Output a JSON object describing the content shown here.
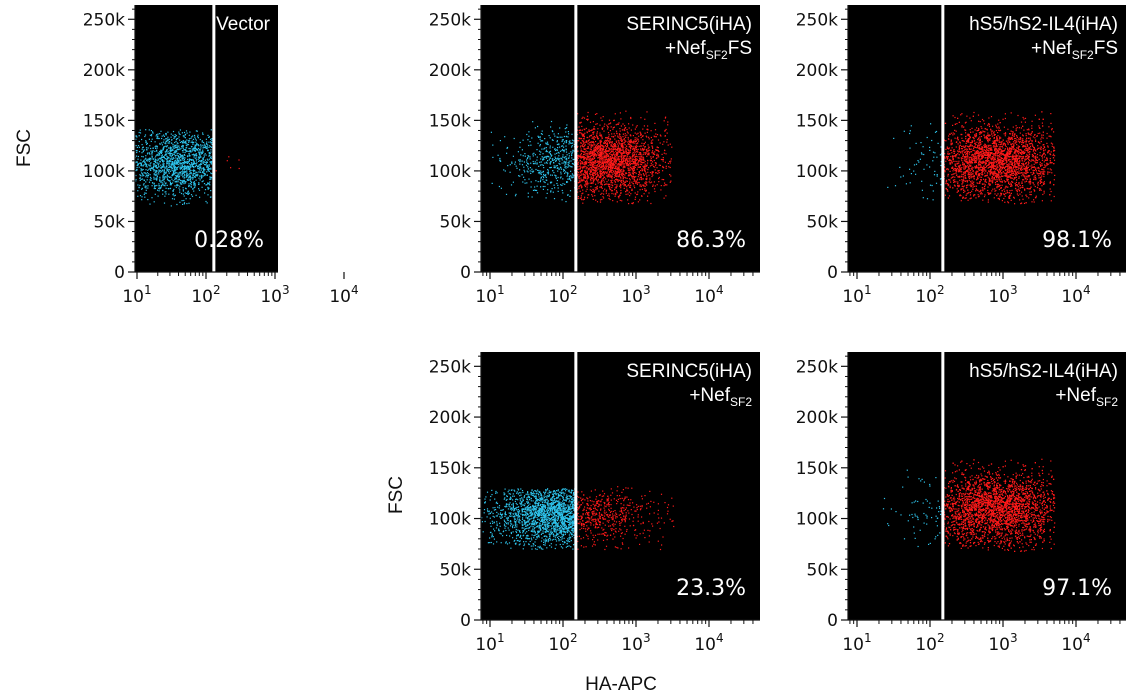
{
  "figure": {
    "y_axis_label": "FSC",
    "x_axis_label": "HA-APC",
    "colors": {
      "background": "#000000",
      "negative": "#2ec4ec",
      "positive": "#ff1a1a",
      "gate": "#ffffff"
    }
  },
  "chart_data": [
    {
      "type": "scatter",
      "panel": "Vector",
      "title_lines": [
        {
          "main": "Vector",
          "sub": "",
          "tail": ""
        }
      ],
      "percent_label": "0.28%",
      "gate_x": 130,
      "xlim": [
        6,
        50000
      ],
      "xscale": "log",
      "xticks": [
        "10^1",
        "10^2",
        "10^3",
        "10^4"
      ],
      "ylim": [
        0,
        262144
      ],
      "yticks": [
        "0",
        "50k",
        "100k",
        "150k",
        "200k",
        "250k"
      ],
      "populations": [
        {
          "name": "negative",
          "color": "#2ec4ec",
          "logx_range": [
            0.78,
            2.08
          ],
          "logx_peak": 1.6,
          "y_center": 107000,
          "y_spread": 17000,
          "y_range": [
            65000,
            142000
          ],
          "density": 1800
        },
        {
          "name": "positive",
          "color": "#ff1a1a",
          "logx_range": [
            2.12,
            2.6
          ],
          "logx_peak": 2.3,
          "y_center": 108000,
          "y_spread": 12000,
          "y_range": [
            85000,
            130000
          ],
          "density": 8
        }
      ]
    },
    {
      "type": "scatter",
      "panel": "SERINC5(iHA)+NefSF2FS",
      "title_lines": [
        {
          "main": "SERINC5(iHA)",
          "sub": "",
          "tail": ""
        },
        {
          "main": "+Nef",
          "sub": "SF2",
          "tail": "FS"
        }
      ],
      "percent_label": "86.3%",
      "gate_x": 150,
      "xlim": [
        6,
        50000
      ],
      "xscale": "log",
      "xticks": [
        "10^1",
        "10^2",
        "10^3",
        "10^4"
      ],
      "ylim": [
        0,
        262144
      ],
      "yticks": [
        "0",
        "50k",
        "100k",
        "150k",
        "200k",
        "250k"
      ],
      "populations": [
        {
          "name": "negative",
          "color": "#2ec4ec",
          "logx_range": [
            1.0,
            2.17
          ],
          "logx_peak": 2.0,
          "y_center": 110000,
          "y_spread": 19000,
          "y_range": [
            70000,
            150000
          ],
          "density": 700
        },
        {
          "name": "positive",
          "color": "#ff1a1a",
          "logx_range": [
            2.18,
            3.5
          ],
          "logx_peak": 2.6,
          "y_center": 110000,
          "y_spread": 18000,
          "y_range": [
            68000,
            160000
          ],
          "density": 2600
        }
      ]
    },
    {
      "type": "scatter",
      "panel": "hS5/hS2-IL4(iHA)+NefSF2FS",
      "title_lines": [
        {
          "main": "hS5/hS2-IL4(iHA)",
          "sub": "",
          "tail": ""
        },
        {
          "main": "+Nef",
          "sub": "SF2",
          "tail": "FS"
        }
      ],
      "percent_label": "98.1%",
      "gate_x": 150,
      "xlim": [
        6,
        50000
      ],
      "xscale": "log",
      "xticks": [
        "10^1",
        "10^2",
        "10^3",
        "10^4"
      ],
      "ylim": [
        0,
        262144
      ],
      "yticks": [
        "0",
        "50k",
        "100k",
        "150k",
        "200k",
        "250k"
      ],
      "populations": [
        {
          "name": "negative",
          "color": "#2ec4ec",
          "logx_range": [
            1.3,
            2.17
          ],
          "logx_peak": 2.05,
          "y_center": 108000,
          "y_spread": 18000,
          "y_range": [
            70000,
            150000
          ],
          "density": 90
        },
        {
          "name": "positive",
          "color": "#ff1a1a",
          "logx_range": [
            2.18,
            3.7
          ],
          "logx_peak": 2.9,
          "y_center": 110000,
          "y_spread": 18000,
          "y_range": [
            68000,
            160000
          ],
          "density": 3200
        }
      ]
    },
    {
      "type": "scatter",
      "panel": "SERINC5(iHA)+NefSF2",
      "title_lines": [
        {
          "main": "SERINC5(iHA)",
          "sub": "",
          "tail": ""
        },
        {
          "main": "+Nef",
          "sub": "SF2",
          "tail": ""
        }
      ],
      "percent_label": "23.3%",
      "gate_x": 150,
      "xlim": [
        6,
        50000
      ],
      "xscale": "log",
      "xticks": [
        "10^1",
        "10^2",
        "10^3",
        "10^4"
      ],
      "ylim": [
        0,
        262144
      ],
      "yticks": [
        "0",
        "50k",
        "100k",
        "150k",
        "200k",
        "250k"
      ],
      "populations": [
        {
          "name": "negative",
          "color": "#2ec4ec",
          "logx_range": [
            0.85,
            2.17
          ],
          "logx_peak": 1.95,
          "y_center": 105000,
          "y_spread": 16000,
          "y_range": [
            70000,
            130000
          ],
          "density": 2600
        },
        {
          "name": "positive",
          "color": "#ff1a1a",
          "logx_range": [
            2.18,
            3.6
          ],
          "logx_peak": 2.3,
          "y_center": 104000,
          "y_spread": 15000,
          "y_range": [
            70000,
            132000
          ],
          "density": 800
        }
      ]
    },
    {
      "type": "scatter",
      "panel": "hS5/hS2-IL4(iHA)+NefSF2",
      "title_lines": [
        {
          "main": "hS5/hS2-IL4(iHA)",
          "sub": "",
          "tail": ""
        },
        {
          "main": "+Nef",
          "sub": "SF2",
          "tail": ""
        }
      ],
      "percent_label": "97.1%",
      "gate_x": 150,
      "xlim": [
        6,
        50000
      ],
      "xscale": "log",
      "xticks": [
        "10^1",
        "10^2",
        "10^3",
        "10^4"
      ],
      "ylim": [
        0,
        262144
      ],
      "yticks": [
        "0",
        "50k",
        "100k",
        "150k",
        "200k",
        "250k"
      ],
      "populations": [
        {
          "name": "negative",
          "color": "#2ec4ec",
          "logx_range": [
            1.3,
            2.17
          ],
          "logx_peak": 2.05,
          "y_center": 108000,
          "y_spread": 18000,
          "y_range": [
            70000,
            150000
          ],
          "density": 100
        },
        {
          "name": "positive",
          "color": "#ff1a1a",
          "logx_range": [
            2.18,
            3.7
          ],
          "logx_peak": 2.9,
          "y_center": 110000,
          "y_spread": 18000,
          "y_range": [
            68000,
            160000
          ],
          "density": 3200
        }
      ]
    }
  ]
}
